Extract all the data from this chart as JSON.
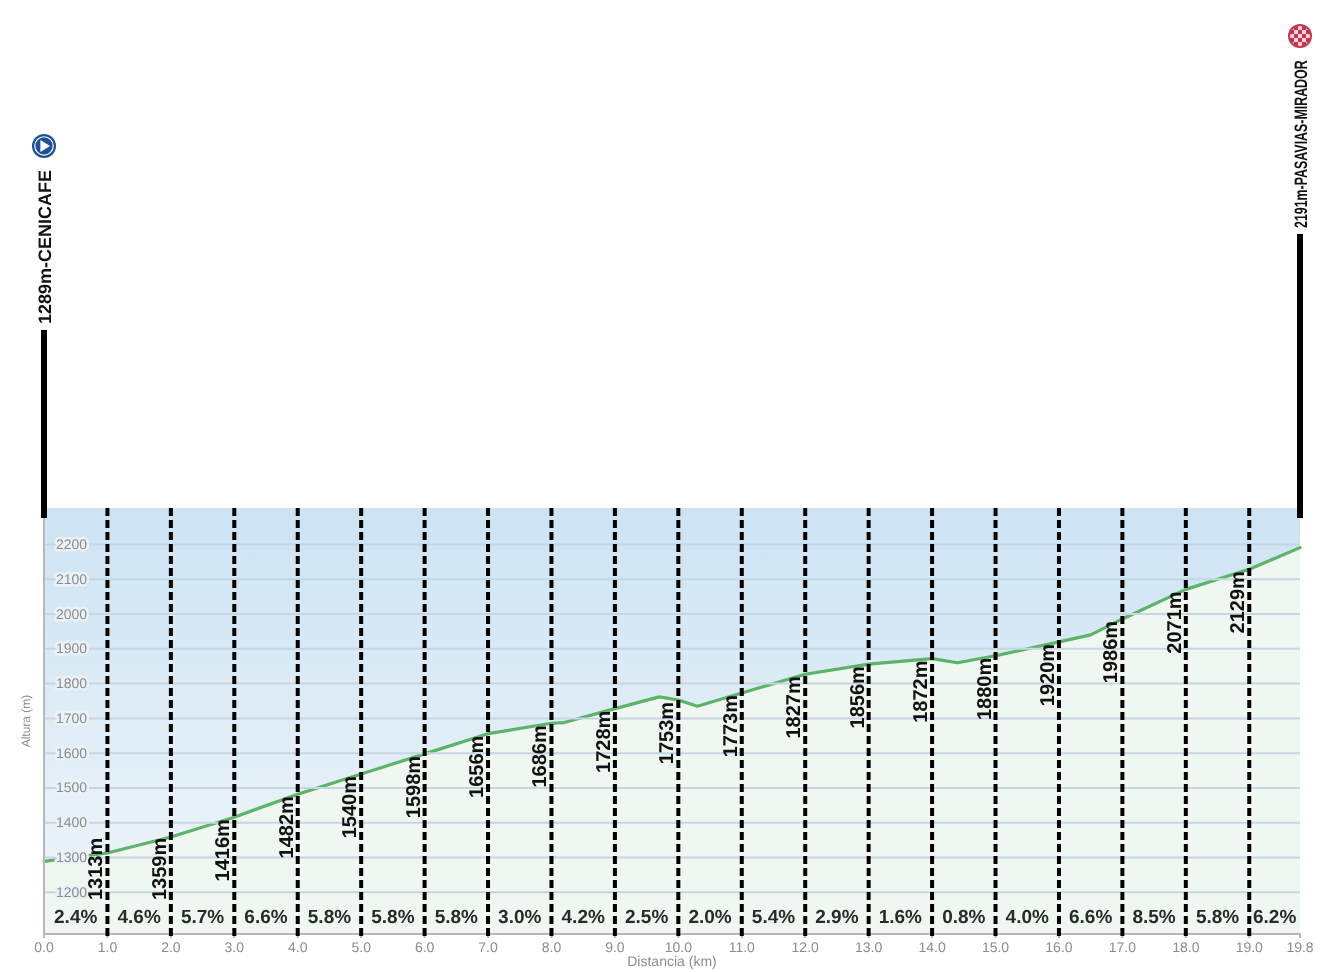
{
  "chart_data": {
    "type": "area",
    "xlabel": "Distancia (km)",
    "ylabel": "Altura (m)",
    "x": [
      0,
      1,
      2,
      3,
      4,
      5,
      6,
      7,
      8,
      8.2,
      9,
      9.7,
      10,
      10.3,
      11,
      12,
      13,
      14,
      14.4,
      15,
      16,
      16.5,
      17,
      18,
      19,
      19.8
    ],
    "series": [
      {
        "color": "#5cb36a",
        "values": [
          1289,
          1313,
          1359,
          1416,
          1482,
          1540,
          1598,
          1656,
          1686,
          1688,
          1728,
          1762,
          1753,
          1735,
          1773,
          1827,
          1856,
          1872,
          1860,
          1880,
          1920,
          1940,
          1986,
          2071,
          2129,
          2191
        ]
      }
    ],
    "xlim": [
      0,
      19.8
    ],
    "ylim": [
      1080,
      2305
    ],
    "xticks": [
      {
        "value": 0,
        "label": "0.0"
      },
      {
        "value": 1,
        "label": "1.0"
      },
      {
        "value": 2,
        "label": "2.0"
      },
      {
        "value": 3,
        "label": "3.0"
      },
      {
        "value": 4,
        "label": "4.0"
      },
      {
        "value": 5,
        "label": "5.0"
      },
      {
        "value": 6,
        "label": "6.0"
      },
      {
        "value": 7,
        "label": "7.0"
      },
      {
        "value": 8,
        "label": "8.0"
      },
      {
        "value": 9,
        "label": "9.0"
      },
      {
        "value": 10,
        "label": "10.0"
      },
      {
        "value": 11,
        "label": "11.0"
      },
      {
        "value": 12,
        "label": "12.0"
      },
      {
        "value": 13,
        "label": "13.0"
      },
      {
        "value": 14,
        "label": "14.0"
      },
      {
        "value": 15,
        "label": "15.0"
      },
      {
        "value": 16,
        "label": "16.0"
      },
      {
        "value": 17,
        "label": "17.0"
      },
      {
        "value": 18,
        "label": "18.0"
      },
      {
        "value": 19,
        "label": "19.0"
      },
      {
        "value": 19.8,
        "label": "19.8"
      }
    ],
    "yticks": [
      1200,
      1300,
      1400,
      1500,
      1600,
      1700,
      1800,
      1900,
      2000,
      2100,
      2200
    ],
    "grid": "y",
    "ref_lines": [
      {
        "axis": "x",
        "value": 0,
        "label": "1289m-CENICAFE",
        "line_style": "solid",
        "color": "#000000"
      },
      {
        "axis": "x",
        "value": 1,
        "label": "1313m",
        "line_style": "dashed",
        "color": "#000000"
      },
      {
        "axis": "x",
        "value": 2,
        "label": "1359m",
        "line_style": "dashed",
        "color": "#000000"
      },
      {
        "axis": "x",
        "value": 3,
        "label": "1416m",
        "line_style": "dashed",
        "color": "#000000"
      },
      {
        "axis": "x",
        "value": 4,
        "label": "1482m",
        "line_style": "dashed",
        "color": "#000000"
      },
      {
        "axis": "x",
        "value": 5,
        "label": "1540m",
        "line_style": "dashed",
        "color": "#000000"
      },
      {
        "axis": "x",
        "value": 6,
        "label": "1598m",
        "line_style": "dashed",
        "color": "#000000"
      },
      {
        "axis": "x",
        "value": 7,
        "label": "1656m",
        "line_style": "dashed",
        "color": "#000000"
      },
      {
        "axis": "x",
        "value": 8,
        "label": "1686m",
        "line_style": "dashed",
        "color": "#000000"
      },
      {
        "axis": "x",
        "value": 9,
        "label": "1728m",
        "line_style": "dashed",
        "color": "#000000"
      },
      {
        "axis": "x",
        "value": 10,
        "label": "1753m",
        "line_style": "dashed",
        "color": "#000000"
      },
      {
        "axis": "x",
        "value": 11,
        "label": "1773m",
        "line_style": "dashed",
        "color": "#000000"
      },
      {
        "axis": "x",
        "value": 12,
        "label": "1827m",
        "line_style": "dashed",
        "color": "#000000"
      },
      {
        "axis": "x",
        "value": 13,
        "label": "1856m",
        "line_style": "dashed",
        "color": "#000000"
      },
      {
        "axis": "x",
        "value": 14,
        "label": "1872m",
        "line_style": "dashed",
        "color": "#000000"
      },
      {
        "axis": "x",
        "value": 15,
        "label": "1880m",
        "line_style": "dashed",
        "color": "#000000"
      },
      {
        "axis": "x",
        "value": 16,
        "label": "1920m",
        "line_style": "dashed",
        "color": "#000000"
      },
      {
        "axis": "x",
        "value": 17,
        "label": "1986m",
        "line_style": "dashed",
        "color": "#000000"
      },
      {
        "axis": "x",
        "value": 18,
        "label": "2071m",
        "line_style": "dashed",
        "color": "#000000"
      },
      {
        "axis": "x",
        "value": 19,
        "label": "2129m",
        "line_style": "dashed",
        "color": "#000000"
      },
      {
        "axis": "x",
        "value": 19.8,
        "label": "2191m-PASAVIAS-MIRADOR",
        "line_style": "solid",
        "color": "#000000"
      }
    ],
    "annotations": [
      "2.4%",
      "4.6%",
      "5.7%",
      "6.6%",
      "5.8%",
      "5.8%",
      "5.8%",
      "3.0%",
      "4.2%",
      "2.5%",
      "2.0%",
      "5.4%",
      "2.9%",
      "1.6%",
      "0.8%",
      "4.0%",
      "6.6%",
      "8.5%",
      "5.8%",
      "6.2%"
    ]
  }
}
